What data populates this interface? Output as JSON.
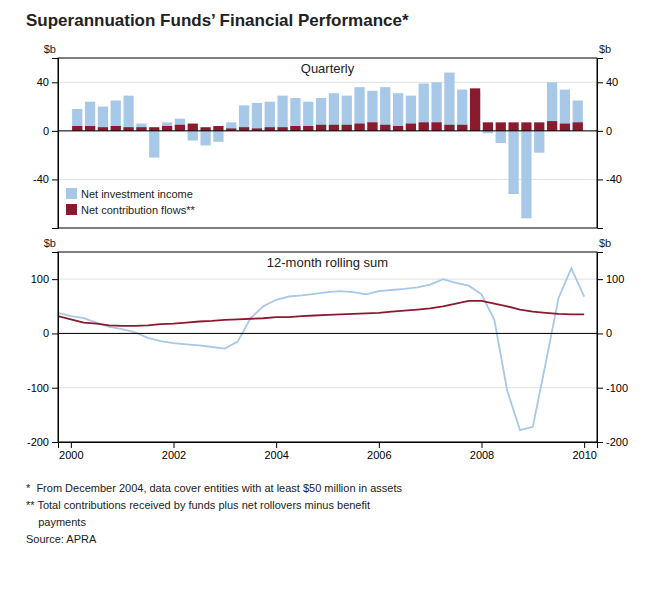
{
  "title": "Superannuation Funds’ Financial Performance*",
  "annotations": [
    "*  From December 2004, data cover entities with at least $50 million in assets",
    "** Total contributions received by funds plus net rollovers minus benefit",
    "    payments",
    "Source: APRA"
  ],
  "chart_data": [
    {
      "type": "bar",
      "title": "Quarterly",
      "x": [
        2000.125,
        2000.375,
        2000.625,
        2000.875,
        2001.125,
        2001.375,
        2001.625,
        2001.875,
        2002.125,
        2002.375,
        2002.625,
        2002.875,
        2003.125,
        2003.375,
        2003.625,
        2003.875,
        2004.125,
        2004.375,
        2004.625,
        2004.875,
        2005.125,
        2005.375,
        2005.625,
        2005.875,
        2006.125,
        2006.375,
        2006.625,
        2006.875,
        2007.125,
        2007.375,
        2007.625,
        2007.875,
        2008.125,
        2008.375,
        2008.625,
        2008.875,
        2009.125,
        2009.375,
        2009.625,
        2009.875
      ],
      "xlim": [
        1999.75,
        2010.25
      ],
      "ylim": [
        -80,
        60
      ],
      "yticks": [
        -40,
        0,
        40
      ],
      "ylabel": "$b",
      "grid": true,
      "legend": "lower left",
      "stacked": false,
      "tick_labels": "y",
      "series": [
        {
          "name": "Net investment income",
          "color": "#a8c8e8",
          "values": [
            18,
            24,
            20,
            25,
            29,
            6,
            -22,
            7,
            10,
            -8,
            -12,
            -9,
            7,
            21,
            23,
            24,
            29,
            27,
            24,
            27,
            31,
            29,
            36,
            33,
            36,
            31,
            29,
            39,
            40,
            48,
            34,
            32,
            -2,
            -10,
            -52,
            -72,
            -18,
            40,
            34,
            25
          ]
        },
        {
          "name": "Net contribution flows**",
          "color": "#8b1a2e",
          "values": [
            4,
            4,
            3,
            4,
            3,
            3,
            3,
            4,
            5,
            6,
            3,
            4,
            2,
            3,
            2,
            3,
            3,
            4,
            4,
            5,
            5,
            5,
            6,
            7,
            5,
            4,
            6,
            7,
            7,
            5,
            5,
            35,
            7,
            7,
            7,
            7,
            7,
            8,
            6,
            7
          ]
        }
      ]
    },
    {
      "type": "line",
      "title": "12-month rolling sum",
      "x": [
        1999.75,
        2000.0,
        2000.25,
        2000.5,
        2000.75,
        2001.0,
        2001.25,
        2001.5,
        2001.75,
        2002.0,
        2002.25,
        2002.5,
        2002.75,
        2003.0,
        2003.25,
        2003.5,
        2003.75,
        2004.0,
        2004.25,
        2004.5,
        2004.75,
        2005.0,
        2005.25,
        2005.5,
        2005.75,
        2006.0,
        2006.25,
        2006.5,
        2006.75,
        2007.0,
        2007.25,
        2007.5,
        2007.75,
        2008.0,
        2008.25,
        2008.5,
        2008.75,
        2009.0,
        2009.25,
        2009.5,
        2009.75,
        2010.0
      ],
      "xlim": [
        1999.75,
        2010.25
      ],
      "xticks": [
        2000,
        2002,
        2004,
        2006,
        2008,
        2010
      ],
      "ylim": [
        -200,
        150
      ],
      "yticks": [
        -200,
        -100,
        0,
        100
      ],
      "ylabel": "$b",
      "grid": true,
      "series": [
        {
          "color": "#a8c8e8",
          "values": [
            38,
            32,
            28,
            20,
            12,
            8,
            2,
            -8,
            -14,
            -18,
            -20,
            -22,
            -25,
            -28,
            -15,
            28,
            50,
            62,
            68,
            70,
            73,
            76,
            78,
            76,
            72,
            78,
            80,
            82,
            85,
            90,
            100,
            93,
            88,
            72,
            25,
            -105,
            -178,
            -172,
            -55,
            65,
            120,
            68
          ]
        },
        {
          "color": "#8b1a2e",
          "values": [
            32,
            26,
            20,
            18,
            15,
            14,
            14,
            15,
            17,
            18,
            20,
            22,
            23,
            25,
            26,
            27,
            28,
            30,
            30,
            32,
            33,
            34,
            35,
            36,
            37,
            38,
            40,
            42,
            44,
            46,
            50,
            55,
            60,
            60,
            55,
            50,
            44,
            40,
            38,
            36,
            35,
            35
          ]
        }
      ]
    }
  ]
}
